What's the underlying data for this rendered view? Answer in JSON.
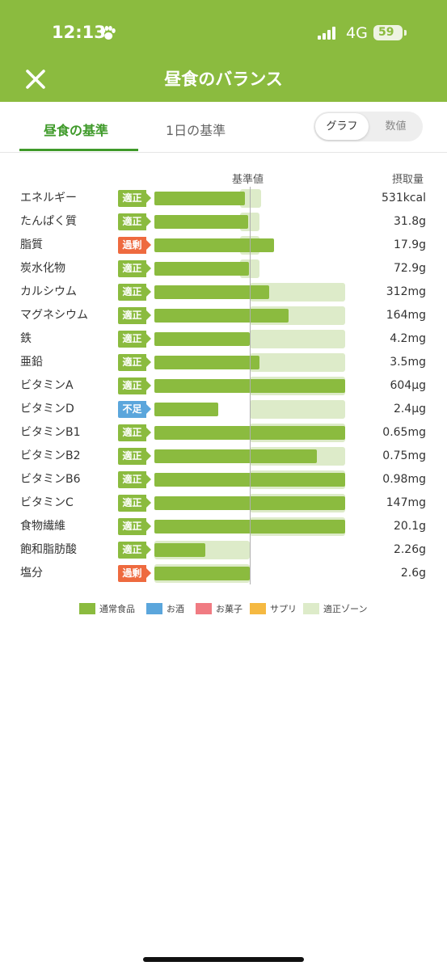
{
  "status_bar": {
    "time": "12:13",
    "network": "4G",
    "battery": "59"
  },
  "header": {
    "title": "昼食のバランス"
  },
  "tabs": [
    {
      "label": "昼食の基準",
      "active": true
    },
    {
      "label": "1日の基準",
      "active": false
    }
  ],
  "toggle": {
    "graph_label": "グラフ",
    "numeric_label": "数値",
    "selected": "グラフ"
  },
  "columns": {
    "standard_label": "基準値",
    "intake_label": "摂取量"
  },
  "colors": {
    "normal_food": "#8bbb3f",
    "alcohol": "#5ba6dc",
    "snacks": "#f07b82",
    "supplement": "#f5b942",
    "zone": "#ddebc9",
    "excess": "#ee6a3f",
    "deficient": "#5ba6dc"
  },
  "nutrients": [
    {
      "name": "エネルギー",
      "status": "適正",
      "status_type": "ok",
      "value": "531kcal",
      "intake_ratio": 0.95,
      "zone": [
        0.9,
        1.12
      ]
    },
    {
      "name": "たんぱく質",
      "status": "適正",
      "status_type": "ok",
      "value": "31.8g",
      "intake_ratio": 0.98,
      "zone": [
        0.9,
        1.1
      ]
    },
    {
      "name": "脂質",
      "status": "過剰",
      "status_type": "over",
      "value": "17.9g",
      "intake_ratio": 1.25,
      "zone": [
        0.9,
        1.1
      ]
    },
    {
      "name": "炭水化物",
      "status": "適正",
      "status_type": "ok",
      "value": "72.9g",
      "intake_ratio": 0.99,
      "zone": [
        0.9,
        1.1
      ]
    },
    {
      "name": "カルシウム",
      "status": "適正",
      "status_type": "ok",
      "value": "312mg",
      "intake_ratio": 1.2,
      "zone": [
        1.0,
        2.0
      ]
    },
    {
      "name": "マグネシウム",
      "status": "適正",
      "status_type": "ok",
      "value": "164mg",
      "intake_ratio": 1.41,
      "zone": [
        1.0,
        2.0
      ]
    },
    {
      "name": "鉄",
      "status": "適正",
      "status_type": "ok",
      "value": "4.2mg",
      "intake_ratio": 1.0,
      "zone": [
        1.0,
        2.0
      ]
    },
    {
      "name": "亜鉛",
      "status": "適正",
      "status_type": "ok",
      "value": "3.5mg",
      "intake_ratio": 1.1,
      "zone": [
        1.0,
        2.0
      ]
    },
    {
      "name": "ビタミンA",
      "status": "適正",
      "status_type": "ok",
      "value": "604μg",
      "intake_ratio": 2.0,
      "zone": [
        1.0,
        2.0
      ]
    },
    {
      "name": "ビタミンD",
      "status": "不足",
      "status_type": "under",
      "value": "2.4μg",
      "intake_ratio": 0.67,
      "zone": [
        1.0,
        2.0
      ]
    },
    {
      "name": "ビタミンB1",
      "status": "適正",
      "status_type": "ok",
      "value": "0.65mg",
      "intake_ratio": 2.0,
      "zone": [
        1.0,
        2.0
      ]
    },
    {
      "name": "ビタミンB2",
      "status": "適正",
      "status_type": "ok",
      "value": "0.75mg",
      "intake_ratio": 1.7,
      "zone": [
        1.0,
        2.0
      ]
    },
    {
      "name": "ビタミンB6",
      "status": "適正",
      "status_type": "ok",
      "value": "0.98mg",
      "intake_ratio": 2.0,
      "zone": [
        1.0,
        2.0
      ]
    },
    {
      "name": "ビタミンC",
      "status": "適正",
      "status_type": "ok",
      "value": "147mg",
      "intake_ratio": 2.0,
      "zone": [
        1.0,
        2.0
      ]
    },
    {
      "name": "食物繊維",
      "status": "適正",
      "status_type": "ok",
      "value": "20.1g",
      "intake_ratio": 2.0,
      "zone": [
        1.0,
        2.0
      ]
    },
    {
      "name": "飽和脂肪酸",
      "status": "適正",
      "status_type": "ok",
      "value": "2.26g",
      "intake_ratio": 0.53,
      "zone": [
        0.0,
        1.0
      ]
    },
    {
      "name": "塩分",
      "status": "過剰",
      "status_type": "over",
      "value": "2.6g",
      "intake_ratio": 1.0,
      "zone": [
        0.0,
        1.0
      ]
    }
  ],
  "legend": [
    {
      "label": "通常食品",
      "color": "#8bbb3f"
    },
    {
      "label": "お酒",
      "color": "#5ba6dc"
    },
    {
      "label": "お菓子",
      "color": "#f07b82"
    },
    {
      "label": "サプリ",
      "color": "#f5b942"
    },
    {
      "label": "適正ゾーン",
      "color": "#ddebc9"
    }
  ]
}
